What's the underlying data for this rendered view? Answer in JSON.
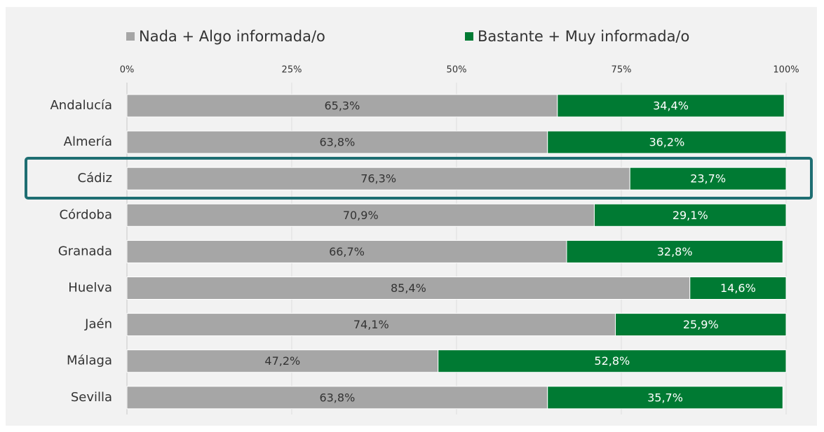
{
  "chart_data": {
    "type": "stacked-bar-horizontal",
    "categories": [
      "Andalucía",
      "Almería",
      "Cádiz",
      "Córdoba",
      "Granada",
      "Huelva",
      "Jaén",
      "Málaga",
      "Sevilla"
    ],
    "series": [
      {
        "name": "Nada + Algo informada/o",
        "color": "#a6a6a6",
        "values": [
          65.3,
          63.8,
          76.3,
          70.9,
          66.7,
          85.4,
          74.1,
          47.2,
          63.8
        ],
        "value_labels": [
          "65,3%",
          "63,8%",
          "76,3%",
          "70,9%",
          "66,7%",
          "85,4%",
          "74,1%",
          "47,2%",
          "63,8%"
        ]
      },
      {
        "name": "Bastante + Muy informada/o",
        "color": "#007a33",
        "values": [
          34.4,
          36.2,
          23.7,
          29.1,
          32.8,
          14.6,
          25.9,
          52.8,
          35.7
        ],
        "value_labels": [
          "34,4%",
          "36,2%",
          "23,7%",
          "29,1%",
          "32,8%",
          "14,6%",
          "25,9%",
          "52,8%",
          "35,7%"
        ]
      }
    ],
    "xlim": [
      0,
      100
    ],
    "xticks": [
      {
        "value": 0,
        "label": "0%"
      },
      {
        "value": 25,
        "label": "25%"
      },
      {
        "value": 50,
        "label": "50%"
      },
      {
        "value": 75,
        "label": "75%"
      },
      {
        "value": 100,
        "label": "100%"
      }
    ],
    "grid": true,
    "legend": "top"
  }
}
